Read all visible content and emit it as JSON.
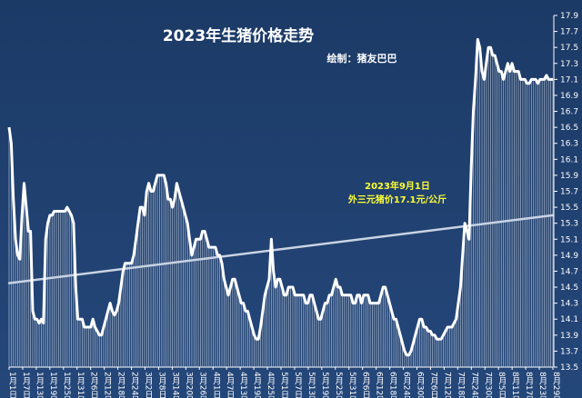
{
  "chart_data": {
    "type": "area",
    "title": "2023年生猪价格走势",
    "subtitle": "绘制：猪友巴巴",
    "annotation": [
      "2023年9月1日",
      "外三元猪价17.1元/公斤"
    ],
    "xlabel": "",
    "ylabel": "",
    "ylim": [
      13.5,
      17.9
    ],
    "yticks": [
      13.5,
      13.7,
      13.9,
      14.1,
      14.3,
      14.5,
      14.7,
      14.9,
      15.1,
      15.3,
      15.5,
      15.7,
      15.9,
      16.1,
      16.3,
      16.5,
      16.7,
      16.9,
      17.1,
      17.3,
      17.5,
      17.7,
      17.9
    ],
    "x_tick_labels": [
      "1月1日",
      "1月7日",
      "1月13日",
      "1月19日",
      "1月25日",
      "1月31日",
      "2月6日",
      "2月12日",
      "2月18日",
      "2月24日",
      "3月2日",
      "3月8日",
      "3月14日",
      "3月20日",
      "3月26日",
      "4月1日",
      "4月7日",
      "4月13日",
      "4月19日",
      "4月25日",
      "5月1日",
      "5月7日",
      "5月13日",
      "5月19日",
      "5月25日",
      "5月31日",
      "6月6日",
      "6月12日",
      "6月18日",
      "6月24日",
      "6月30日",
      "7月6日",
      "7月12日",
      "7月18日",
      "7月24日",
      "7月30日",
      "8月5日",
      "8月11日",
      "8月17日",
      "8月23日",
      "8月29日"
    ],
    "series": [
      {
        "name": "",
        "color": "#ffffff",
        "values": [
          16.5,
          16.3,
          15.6,
          15.1,
          14.9,
          14.85,
          15.4,
          15.8,
          15.5,
          15.2,
          15.2,
          14.2,
          14.1,
          14.1,
          14.05,
          14.1,
          14.05,
          15.1,
          15.3,
          15.4,
          15.4,
          15.45,
          15.45,
          15.45,
          15.45,
          15.45,
          15.45,
          15.5,
          15.45,
          15.4,
          15.3,
          14.5,
          14.1,
          14.1,
          14.1,
          14.0,
          14.0,
          14.0,
          14.0,
          14.1,
          14.0,
          13.95,
          13.9,
          13.9,
          14.0,
          14.1,
          14.2,
          14.3,
          14.2,
          14.15,
          14.2,
          14.3,
          14.5,
          14.7,
          14.8,
          14.8,
          14.8,
          14.8,
          14.9,
          15.1,
          15.3,
          15.5,
          15.5,
          15.4,
          15.7,
          15.8,
          15.7,
          15.7,
          15.8,
          15.9,
          15.9,
          15.9,
          15.9,
          15.8,
          15.6,
          15.6,
          15.5,
          15.6,
          15.8,
          15.7,
          15.6,
          15.5,
          15.4,
          15.3,
          15.1,
          14.9,
          15.0,
          15.1,
          15.1,
          15.1,
          15.2,
          15.2,
          15.1,
          15.0,
          15.0,
          15.0,
          15.0,
          14.9,
          14.9,
          14.8,
          14.6,
          14.5,
          14.4,
          14.5,
          14.6,
          14.6,
          14.5,
          14.4,
          14.3,
          14.3,
          14.2,
          14.2,
          14.1,
          14.0,
          13.9,
          13.85,
          13.85,
          14.0,
          14.2,
          14.4,
          14.5,
          14.6,
          15.1,
          14.7,
          14.5,
          14.6,
          14.6,
          14.5,
          14.4,
          14.4,
          14.5,
          14.5,
          14.5,
          14.4,
          14.4,
          14.4,
          14.4,
          14.4,
          14.3,
          14.3,
          14.4,
          14.4,
          14.3,
          14.2,
          14.1,
          14.1,
          14.2,
          14.3,
          14.3,
          14.4,
          14.4,
          14.5,
          14.6,
          14.5,
          14.5,
          14.4,
          14.4,
          14.4,
          14.4,
          14.4,
          14.3,
          14.3,
          14.4,
          14.4,
          14.3,
          14.4,
          14.4,
          14.4,
          14.3,
          14.3,
          14.3,
          14.3,
          14.3,
          14.4,
          14.5,
          14.5,
          14.4,
          14.3,
          14.2,
          14.1,
          14.1,
          14.0,
          13.9,
          13.8,
          13.7,
          13.65,
          13.65,
          13.7,
          13.8,
          13.9,
          14.0,
          14.1,
          14.1,
          14.0,
          14.0,
          13.95,
          13.95,
          13.9,
          13.9,
          13.85,
          13.85,
          13.85,
          13.9,
          13.95,
          14.0,
          14.0,
          14.0,
          14.05,
          14.1,
          14.3,
          14.5,
          14.9,
          15.3,
          15.2,
          15.1,
          16.0,
          16.7,
          17.1,
          17.6,
          17.5,
          17.2,
          17.1,
          17.3,
          17.5,
          17.5,
          17.4,
          17.4,
          17.3,
          17.2,
          17.2,
          17.1,
          17.2,
          17.3,
          17.2,
          17.3,
          17.2,
          17.2,
          17.2,
          17.1,
          17.1,
          17.1,
          17.05,
          17.05,
          17.1,
          17.1,
          17.1,
          17.05,
          17.1,
          17.1,
          17.1,
          17.15,
          17.1,
          17.1,
          17.1
        ]
      }
    ],
    "trendline": [
      14.55,
      15.4
    ],
    "grid": false,
    "legend": "none",
    "colors": {
      "background": "#1f3a64",
      "line": "#ffffff",
      "trend": "#c9d3e3",
      "annotation": "#ffff33"
    }
  }
}
